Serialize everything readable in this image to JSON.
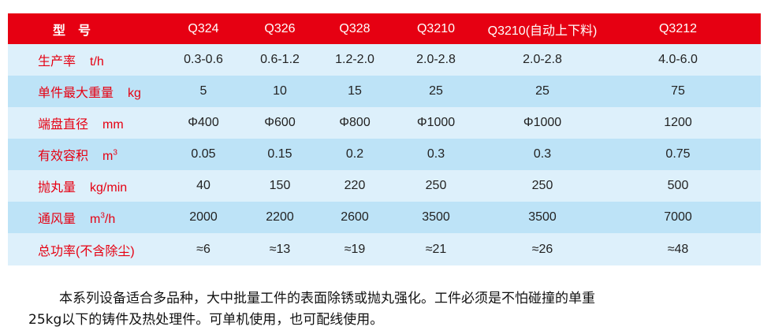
{
  "table": {
    "header": {
      "label": "型　号",
      "models": [
        "Q324",
        "Q326",
        "Q328",
        "Q3210",
        "Q3210(自动上下料)",
        "Q3212"
      ]
    },
    "rows": [
      {
        "label": "生产率",
        "unit": "t/h",
        "unit_sup": "",
        "unit_tail": "",
        "values": [
          "0.3-0.6",
          "0.6-1.2",
          "1.2-2.0",
          "2.0-2.8",
          "2.0-2.8",
          "4.0-6.0"
        ]
      },
      {
        "label": "单件最大重量",
        "unit": "kg",
        "unit_sup": "",
        "unit_tail": "",
        "values": [
          "5",
          "10",
          "15",
          "25",
          "25",
          "75"
        ]
      },
      {
        "label": "端盘直径",
        "unit": "mm",
        "unit_sup": "",
        "unit_tail": "",
        "values": [
          "Φ400",
          "Φ600",
          "Φ800",
          "Φ1000",
          "Φ1000",
          "1200"
        ]
      },
      {
        "label": "有效容积",
        "unit": "m",
        "unit_sup": "3",
        "unit_tail": "",
        "values": [
          "0.05",
          "0.15",
          "0.2",
          "0.3",
          "0.3",
          "0.75"
        ]
      },
      {
        "label": "抛丸量",
        "unit": "kg/min",
        "unit_sup": "",
        "unit_tail": "",
        "values": [
          "40",
          "150",
          "220",
          "250",
          "250",
          "500"
        ]
      },
      {
        "label": "通风量",
        "unit": "m",
        "unit_sup": "3",
        "unit_tail": "/h",
        "values": [
          "2000",
          "2200",
          "2600",
          "3500",
          "3500",
          "7000"
        ]
      },
      {
        "label": "总功率(不含除尘)",
        "unit": "",
        "unit_sup": "",
        "unit_tail": "",
        "values": [
          "≈6",
          "≈13",
          "≈19",
          "≈21",
          "≈26",
          "≈48"
        ]
      }
    ]
  },
  "description": {
    "line1": "本系列设备适合多品种，大中批量工件的表面除锈或抛丸强化。工件必须是不怕碰撞的单重",
    "line2": "25kg以下的铸件及热处理件。可单机使用，也可配线使用。"
  },
  "colors": {
    "header": "#e60012",
    "row_light": "#ddf0fb",
    "row_dark": "#bde3f7",
    "label_text": "#e60012"
  }
}
